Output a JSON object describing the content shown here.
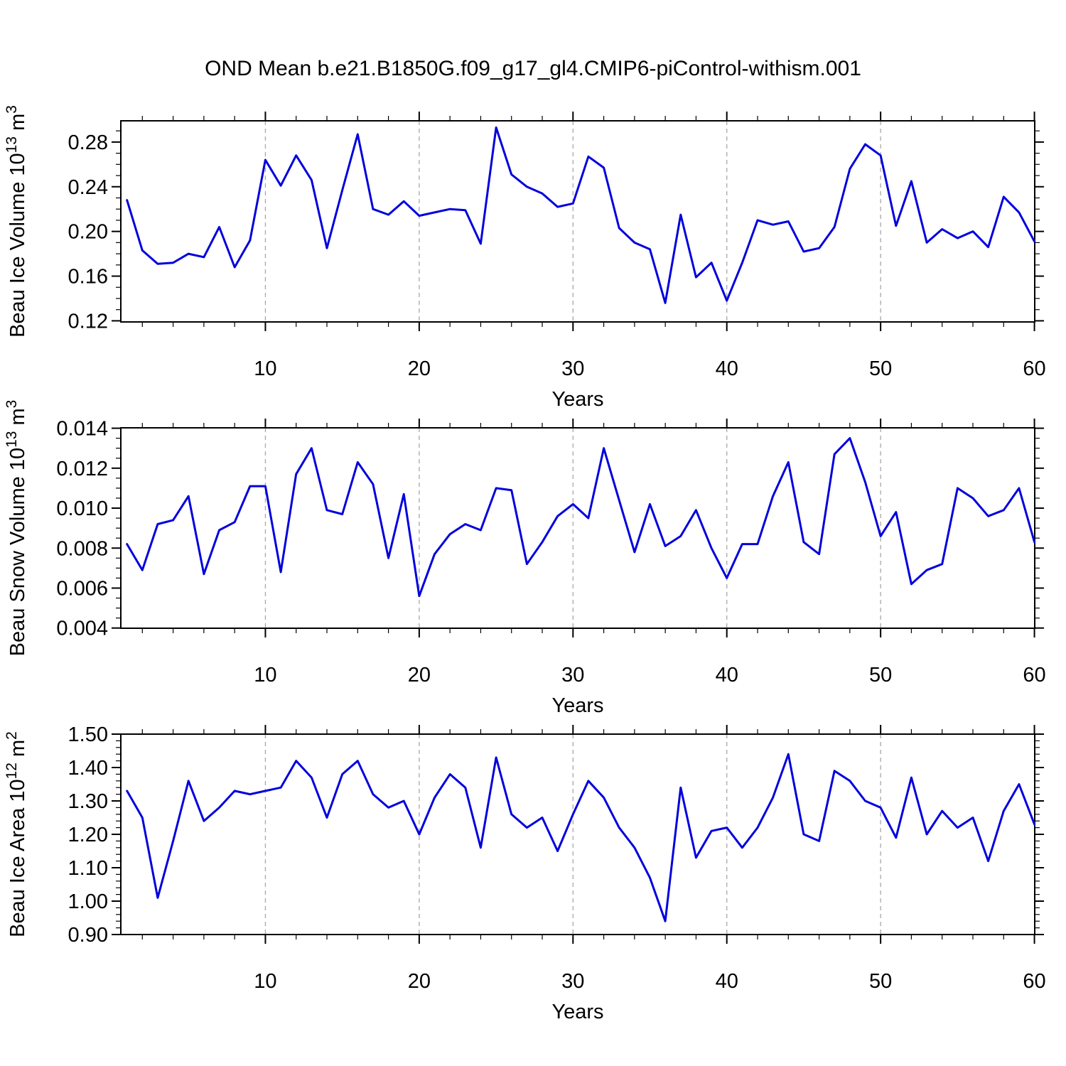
{
  "title": "OND Mean b.e21.B1850G.f09_g17_gl4.CMIP6-piControl-withism.001",
  "colors": {
    "line": "#0101dd",
    "grid": "#a8a8a8",
    "axis": "#000000"
  },
  "x_axis": {
    "label": "Years",
    "range": [
      0.6,
      60.02
    ],
    "major_ticks": [
      10,
      20,
      30,
      40,
      50,
      60
    ],
    "major_tick_labels": [
      "10",
      "20",
      "30",
      "40",
      "50",
      "60"
    ],
    "minor_step": 2,
    "grid_ticks": [
      10,
      20,
      30,
      40,
      50
    ],
    "x_start_year": 1
  },
  "chart_data": [
    {
      "type": "line",
      "name": "beau-ice-volume",
      "ylabel_text": "Beau Ice Volume 10^13 m^3",
      "ylabel_segments": [
        {
          "t": "Beau Ice Volume 10"
        },
        {
          "t": "13",
          "sup": true
        },
        {
          "t": " m"
        },
        {
          "t": "3",
          "sup": true
        }
      ],
      "ylim": [
        0.119,
        0.299
      ],
      "ytick_values": [
        0.12,
        0.16,
        0.2,
        0.24,
        0.28
      ],
      "ytick_labels": [
        "0.12",
        "0.16",
        "0.20",
        "0.24",
        "0.28"
      ],
      "y_minor_step": 0.01,
      "values": [
        0.228,
        0.183,
        0.171,
        0.172,
        0.18,
        0.177,
        0.204,
        0.168,
        0.192,
        0.264,
        0.241,
        0.268,
        0.246,
        0.185,
        0.237,
        0.287,
        0.22,
        0.215,
        0.227,
        0.214,
        0.217,
        0.22,
        0.219,
        0.189,
        0.293,
        0.251,
        0.24,
        0.234,
        0.222,
        0.225,
        0.267,
        0.257,
        0.203,
        0.19,
        0.184,
        0.136,
        0.215,
        0.159,
        0.172,
        0.138,
        0.172,
        0.21,
        0.206,
        0.209,
        0.182,
        0.185,
        0.204,
        0.256,
        0.278,
        0.268,
        0.205,
        0.245,
        0.19,
        0.202,
        0.194,
        0.2,
        0.186,
        0.231,
        0.217,
        0.191
      ]
    },
    {
      "type": "line",
      "name": "beau-snow-volume",
      "ylabel_text": "Beau Snow Volume 10^13 m^3",
      "ylabel_segments": [
        {
          "t": "Beau Snow Volume 10"
        },
        {
          "t": "13",
          "sup": true
        },
        {
          "t": " m"
        },
        {
          "t": "3",
          "sup": true
        }
      ],
      "ylim": [
        0.00399,
        0.01402
      ],
      "ytick_values": [
        0.004,
        0.006,
        0.008,
        0.01,
        0.012,
        0.014
      ],
      "ytick_labels": [
        "0.004",
        "0.006",
        "0.008",
        "0.010",
        "0.012",
        "0.014"
      ],
      "y_minor_step": 0.0005,
      "values": [
        0.0082,
        0.0069,
        0.0092,
        0.0094,
        0.0106,
        0.0067,
        0.0089,
        0.0093,
        0.0111,
        0.0111,
        0.0068,
        0.0117,
        0.013,
        0.0099,
        0.0097,
        0.0123,
        0.0112,
        0.0075,
        0.0107,
        0.0056,
        0.0077,
        0.0087,
        0.0092,
        0.0089,
        0.011,
        0.0109,
        0.0072,
        0.0083,
        0.0096,
        0.0102,
        0.0095,
        0.013,
        0.0104,
        0.0078,
        0.0102,
        0.0081,
        0.0086,
        0.0099,
        0.008,
        0.0065,
        0.0082,
        0.0082,
        0.0106,
        0.0123,
        0.0083,
        0.0077,
        0.0127,
        0.0135,
        0.0113,
        0.0086,
        0.0098,
        0.0062,
        0.0069,
        0.0072,
        0.011,
        0.0105,
        0.0096,
        0.0099,
        0.011,
        0.0083
      ]
    },
    {
      "type": "line",
      "name": "beau-ice-area",
      "ylabel_text": "Beau Ice Area 10^12 m^2",
      "ylabel_segments": [
        {
          "t": "Beau Ice Area 10"
        },
        {
          "t": "12",
          "sup": true
        },
        {
          "t": " m"
        },
        {
          "t": "2",
          "sup": true
        }
      ],
      "ylim": [
        0.9,
        1.5
      ],
      "ytick_values": [
        0.9,
        1.0,
        1.1,
        1.2,
        1.3,
        1.4,
        1.5
      ],
      "ytick_labels": [
        "0.90",
        "1.00",
        "1.10",
        "1.20",
        "1.30",
        "1.40",
        "1.50"
      ],
      "y_minor_step": 0.02,
      "values": [
        1.33,
        1.25,
        1.01,
        1.18,
        1.36,
        1.24,
        1.28,
        1.33,
        1.32,
        1.33,
        1.34,
        1.42,
        1.37,
        1.25,
        1.38,
        1.42,
        1.32,
        1.28,
        1.3,
        1.2,
        1.31,
        1.38,
        1.34,
        1.16,
        1.43,
        1.26,
        1.22,
        1.25,
        1.15,
        1.26,
        1.36,
        1.31,
        1.22,
        1.16,
        1.07,
        0.94,
        1.34,
        1.13,
        1.21,
        1.22,
        1.16,
        1.22,
        1.31,
        1.44,
        1.2,
        1.18,
        1.39,
        1.36,
        1.3,
        1.28,
        1.19,
        1.37,
        1.2,
        1.27,
        1.22,
        1.25,
        1.12,
        1.27,
        1.35,
        1.23
      ]
    }
  ]
}
